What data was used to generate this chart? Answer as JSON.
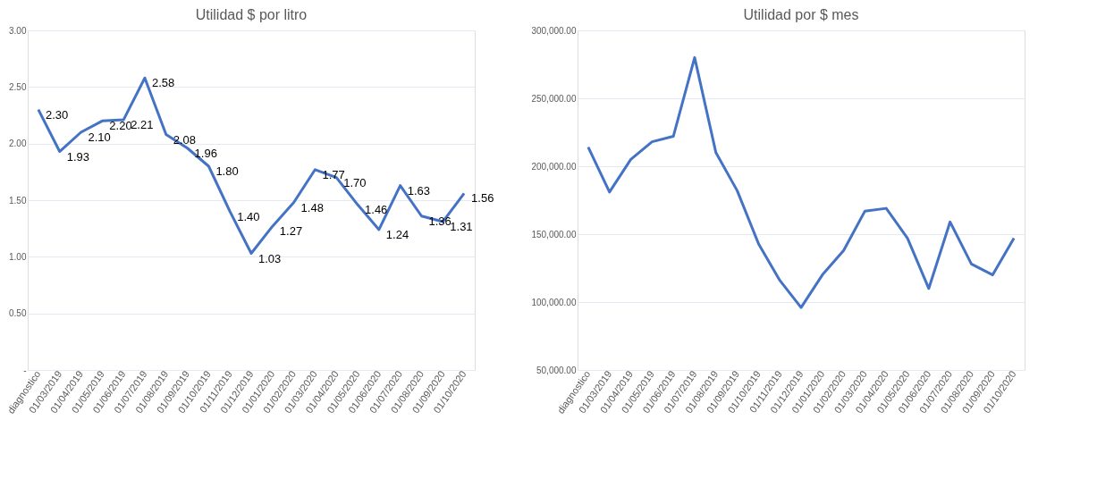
{
  "chart_data": [
    {
      "type": "line",
      "title": "Utilidad $ por litro",
      "categories": [
        "diagnostico",
        "01/03/2019",
        "01/04/2019",
        "01/05/2019",
        "01/06/2019",
        "01/07/2019",
        "01/08/2019",
        "01/09/2019",
        "01/10/2019",
        "01/11/2019",
        "01/12/2019",
        "01/01/2020",
        "01/02/2020",
        "01/03/2020",
        "01/04/2020",
        "01/05/2020",
        "01/06/2020",
        "01/07/2020",
        "01/08/2020",
        "01/09/2020",
        "01/10/2020"
      ],
      "series": [
        {
          "color": "#4472c4",
          "values": [
            2.3,
            1.93,
            2.1,
            2.2,
            2.21,
            2.58,
            2.08,
            1.96,
            1.8,
            1.4,
            1.03,
            1.27,
            1.48,
            1.77,
            1.7,
            1.46,
            1.24,
            1.63,
            1.36,
            1.31,
            1.56
          ]
        }
      ],
      "ylim": [
        0,
        3
      ],
      "yticks": [
        {
          "value": 0,
          "label": "-"
        },
        {
          "value": 0.5,
          "label": "0.50"
        },
        {
          "value": 1,
          "label": "1.00"
        },
        {
          "value": 1.5,
          "label": "1.50"
        },
        {
          "value": 2,
          "label": "2.00"
        },
        {
          "value": 2.5,
          "label": "2.50"
        },
        {
          "value": 3,
          "label": "3.00"
        }
      ],
      "value_labels": [
        "2.30",
        "1.93",
        "2.10",
        "2.20",
        "2.21",
        "2.58",
        "2.08",
        "1.96",
        "1.80",
        "1.40",
        "1.03",
        "1.27",
        "1.48",
        "1.77",
        "1.70",
        "1.46",
        "1.24",
        "1.63",
        "1.36",
        "1.31",
        "1.56"
      ],
      "grid": "y",
      "marker": "none",
      "line_style": "solid"
    },
    {
      "type": "line",
      "title": "Utilidad por $ mes",
      "categories": [
        "diagnostico",
        "01/03/2019",
        "01/04/2019",
        "01/05/2019",
        "01/06/2019",
        "01/07/2019",
        "01/08/2019",
        "01/09/2019",
        "01/10/2019",
        "01/11/2019",
        "01/12/2019",
        "01/01/2020",
        "01/02/2020",
        "01/03/2020",
        "01/04/2020",
        "01/05/2020",
        "01/06/2020",
        "01/07/2020",
        "01/08/2020",
        "01/09/2020",
        "01/10/2020"
      ],
      "series": [
        {
          "color": "#4472c4",
          "values": [
            214000,
            181000,
            205000,
            218000,
            222000,
            280000,
            210000,
            182000,
            143000,
            116000,
            96000,
            120000,
            138000,
            167000,
            169000,
            147000,
            110000,
            159000,
            128000,
            120000,
            147000
          ]
        }
      ],
      "ylim": [
        50000,
        300000
      ],
      "yticks": [
        {
          "value": 50000,
          "label": "50,000.00"
        },
        {
          "value": 100000,
          "label": "100,000.00"
        },
        {
          "value": 150000,
          "label": "150,000.00"
        },
        {
          "value": 200000,
          "label": "200,000.00"
        },
        {
          "value": 250000,
          "label": "250,000.00"
        },
        {
          "value": 300000,
          "label": "300,000.00"
        }
      ],
      "grid": "y",
      "marker": "none",
      "line_style": "solid"
    }
  ]
}
